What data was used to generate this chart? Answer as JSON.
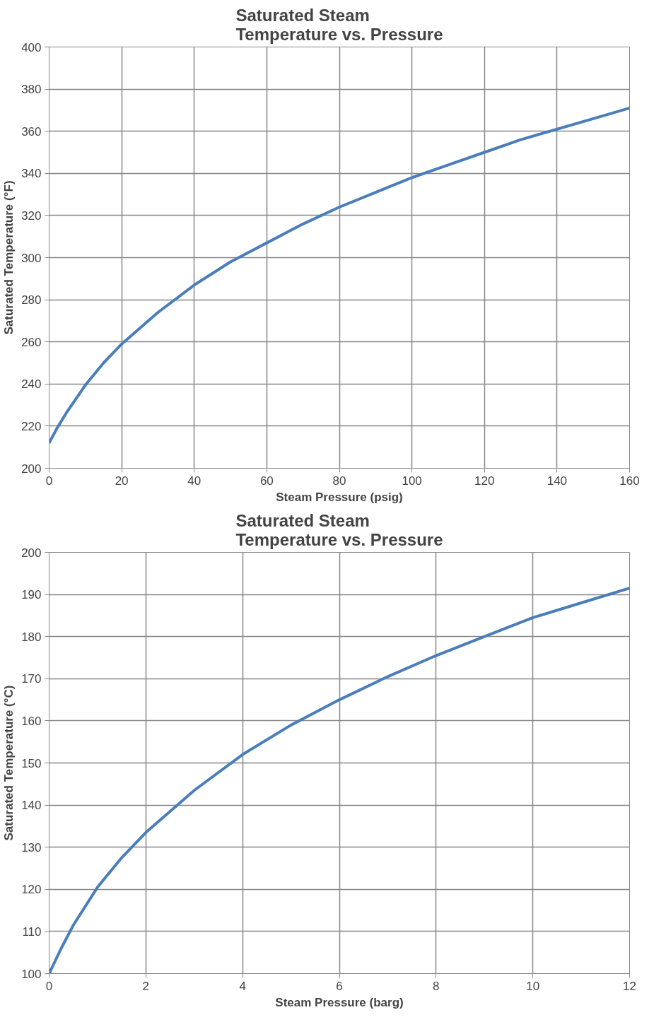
{
  "chart_data": [
    {
      "type": "line",
      "title": "Saturated Steam\nTemperature vs. Pressure",
      "xlabel": "Steam Pressure (psig)",
      "ylabel": "Saturated Temperature (°F)",
      "x": [
        0,
        2,
        5,
        10,
        15,
        20,
        30,
        40,
        50,
        60,
        70,
        80,
        90,
        100,
        110,
        120,
        130,
        140,
        150,
        160
      ],
      "series": [
        {
          "color": "#4a7ebb",
          "values": [
            212,
            218.5,
            227,
            239.5,
            250,
            259,
            274,
            287,
            298,
            307,
            316,
            324,
            331,
            338,
            344,
            350,
            356,
            361,
            366,
            371
          ]
        }
      ],
      "xlim": [
        0,
        160
      ],
      "xticks": [
        0,
        20,
        40,
        60,
        80,
        100,
        120,
        140,
        160
      ],
      "ylim": [
        200,
        400
      ],
      "yticks": [
        200,
        220,
        240,
        260,
        280,
        300,
        320,
        340,
        360,
        380,
        400
      ],
      "grid": true,
      "marker": "none",
      "line_style": "solid"
    },
    {
      "type": "line",
      "title": "Saturated Steam\nTemperature vs. Pressure",
      "xlabel": "Steam Pressure (barg)",
      "ylabel": "Saturated Temperature (°C)",
      "x": [
        0,
        0.25,
        0.5,
        1,
        1.5,
        2,
        3,
        4,
        5,
        6,
        7,
        8,
        9,
        10,
        11,
        12
      ],
      "series": [
        {
          "color": "#4a7ebb",
          "values": [
            100,
            106,
            111.5,
            120.5,
            127.5,
            133.5,
            143.5,
            152,
            159,
            165,
            170.5,
            175.5,
            180,
            184.5,
            188,
            191.5
          ]
        }
      ],
      "xlim": [
        0,
        12
      ],
      "xticks": [
        0,
        2,
        4,
        6,
        8,
        10,
        12
      ],
      "ylim": [
        100,
        200
      ],
      "yticks": [
        100,
        110,
        120,
        130,
        140,
        150,
        160,
        170,
        180,
        190,
        200
      ],
      "grid": true,
      "marker": "none",
      "line_style": "solid"
    }
  ]
}
